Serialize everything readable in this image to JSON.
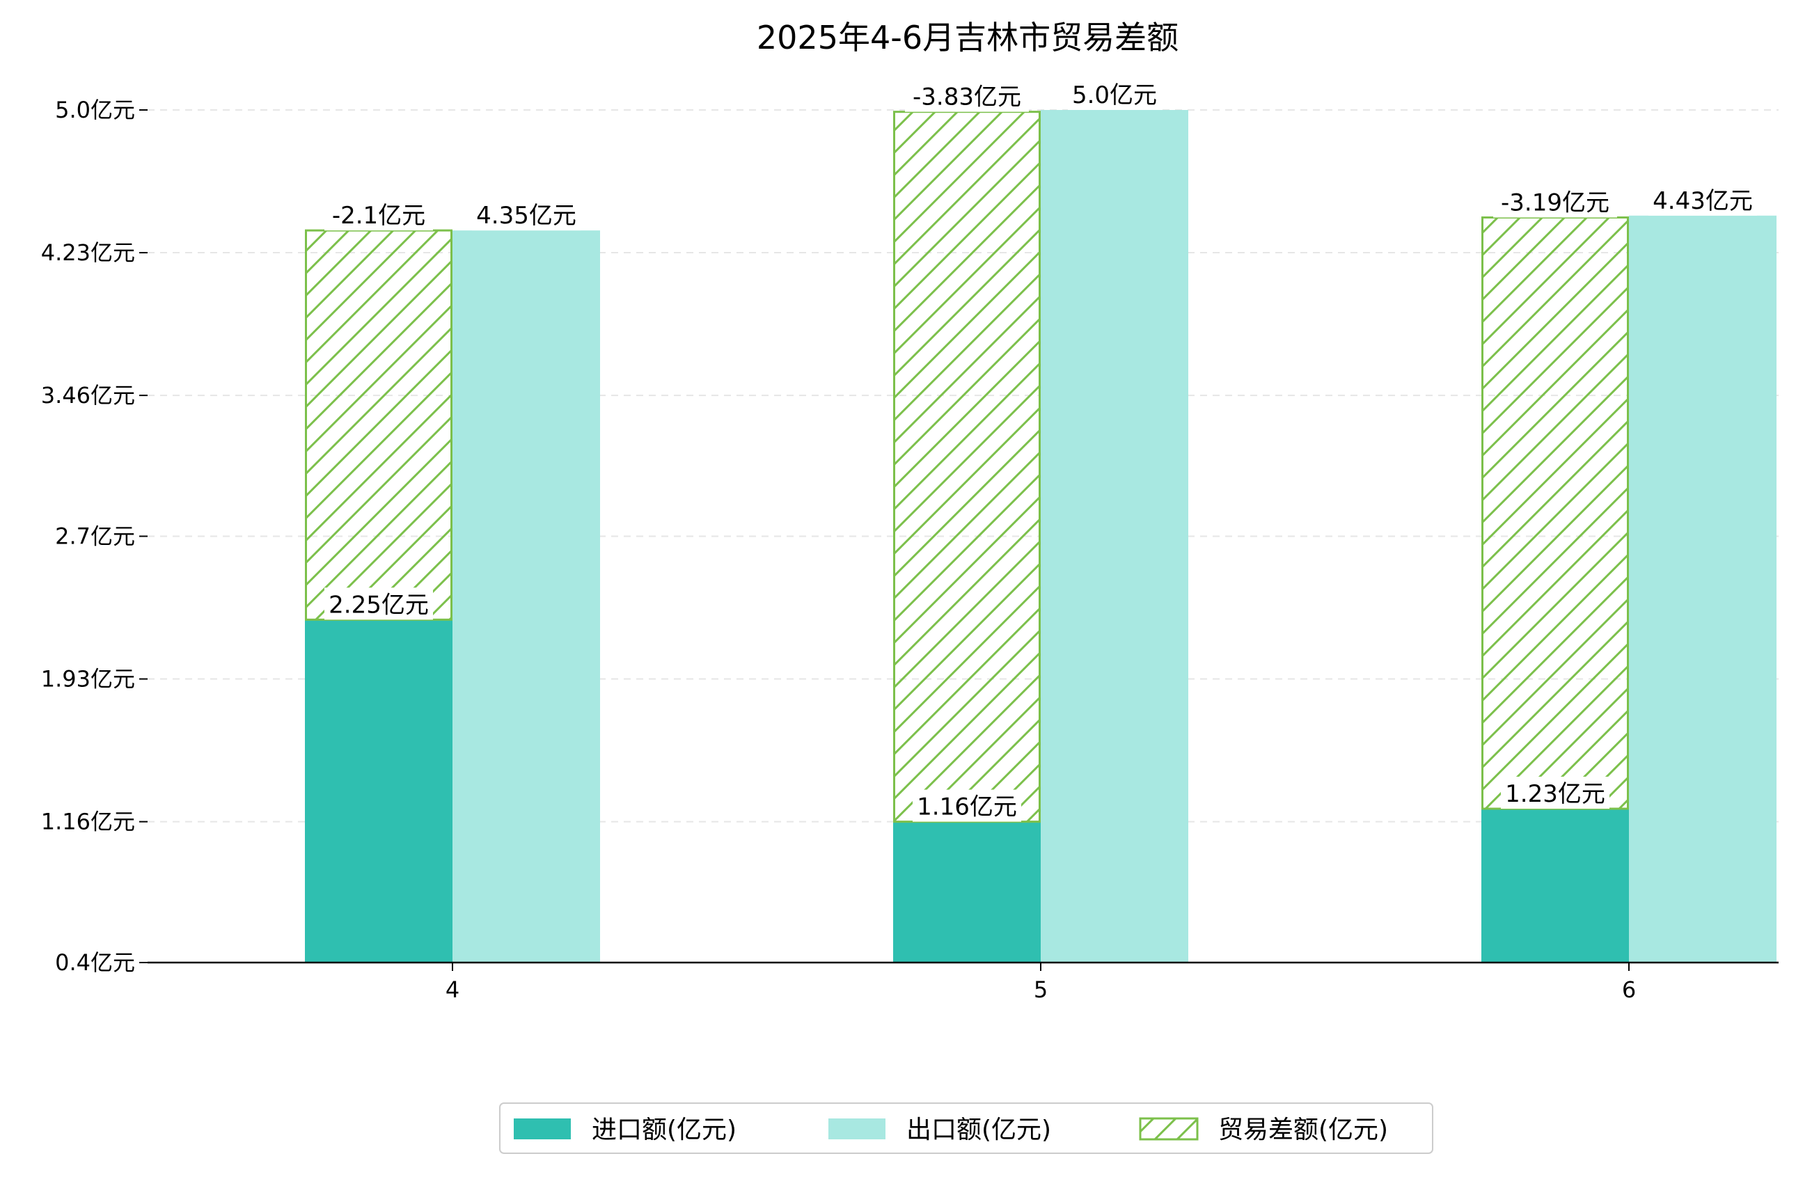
{
  "chart_data": {
    "type": "bar",
    "title": "2025年4-6月吉林市贸易差额",
    "categories": [
      "4",
      "5",
      "6"
    ],
    "series": [
      {
        "name": "进口额(亿元)",
        "values": [
          2.25,
          1.16,
          1.23
        ],
        "color": "#2fbfb0"
      },
      {
        "name": "出口额(亿元)",
        "values": [
          4.35,
          5.0,
          4.43
        ],
        "color": "#a8e8e1"
      },
      {
        "name": "贸易差额(亿元)",
        "values": [
          -2.1,
          -3.83,
          -3.19
        ],
        "color": "#7cc04b",
        "style": "hatched",
        "stacked_on": "进口额(亿元)"
      }
    ],
    "value_labels": {
      "import": [
        "2.25亿元",
        "1.16亿元",
        "1.23亿元"
      ],
      "export": [
        "4.35亿元",
        "5.0亿元",
        "4.43亿元"
      ],
      "balance": [
        "-2.1亿元",
        "-3.83亿元",
        "-3.19亿元"
      ]
    },
    "y_ticks": [
      0.4,
      1.16,
      1.93,
      2.7,
      3.46,
      4.23,
      5.0
    ],
    "y_tick_labels": [
      "0.4亿元",
      "1.16亿元",
      "1.93亿元",
      "2.7亿元",
      "3.46亿元",
      "4.23亿元",
      "5.0亿元"
    ],
    "ylim": [
      0.4,
      5.0
    ],
    "grid": "horizontal dashed",
    "legend_position": "bottom-center",
    "xlabel": "",
    "ylabel": ""
  }
}
